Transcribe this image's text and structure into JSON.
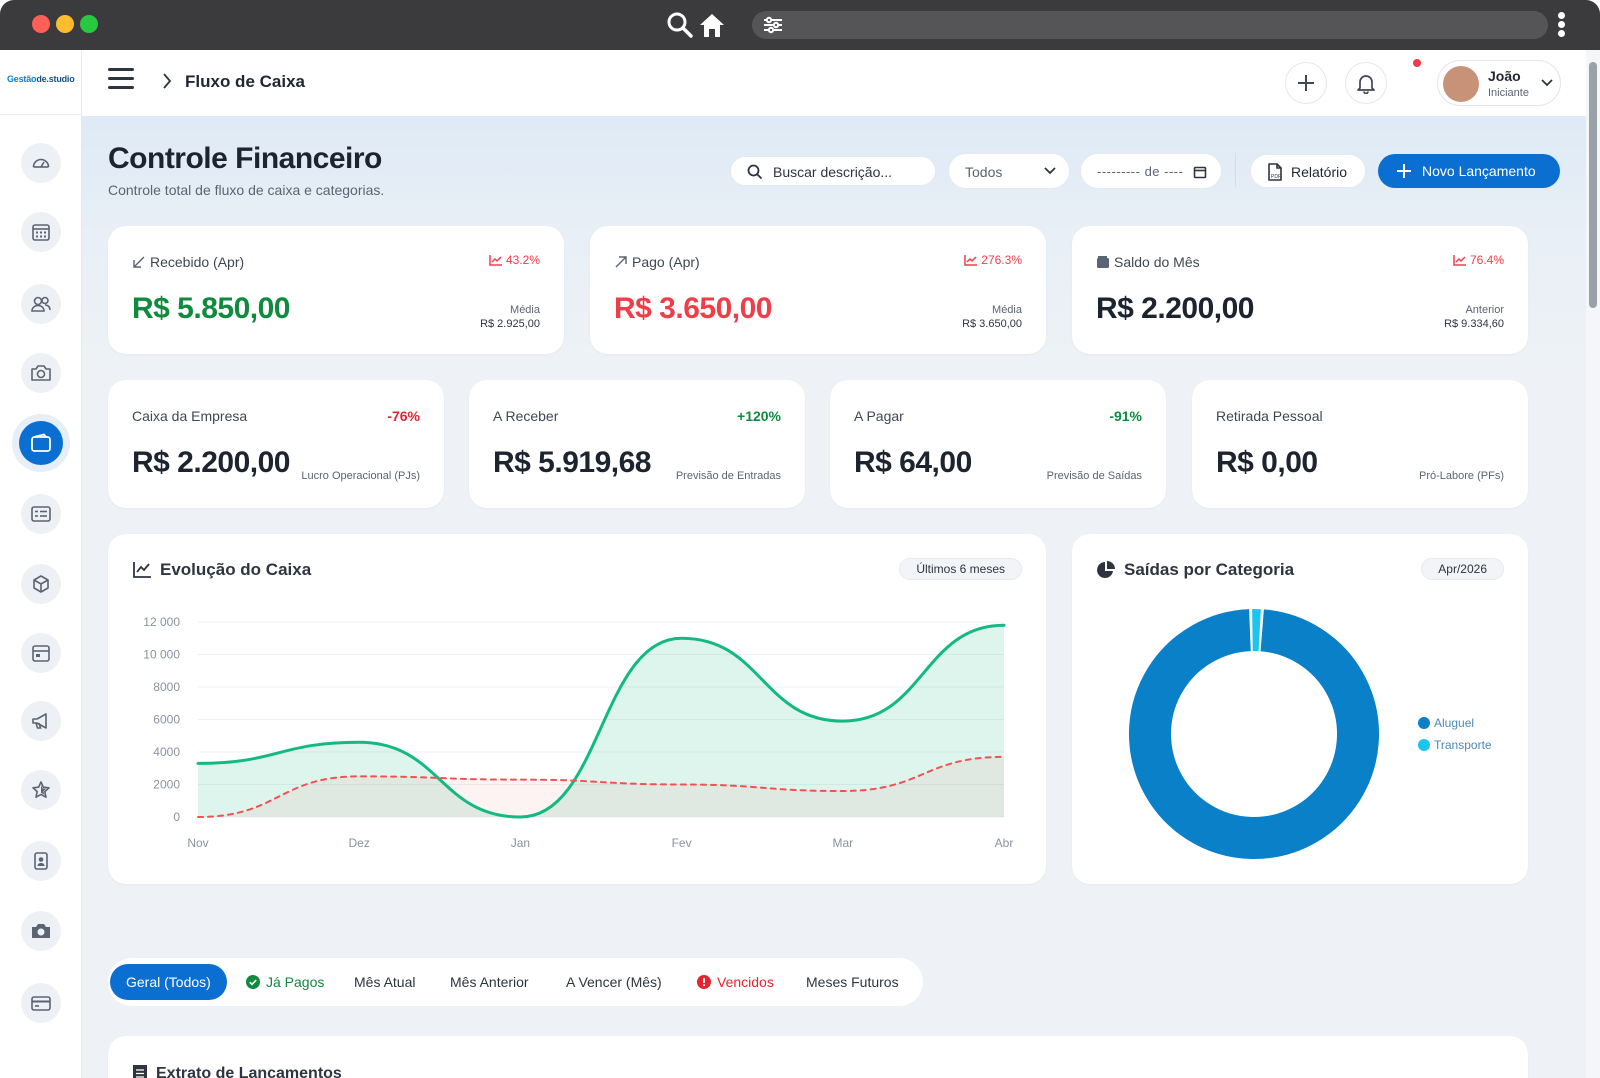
{
  "topbar": {
    "breadcrumb": "Fluxo de Caixa"
  },
  "logo": {
    "text_prefix": "Gestão",
    "text_suffix": "de.studio"
  },
  "user": {
    "name": "João",
    "role": "Iniciante"
  },
  "page": {
    "title": "Controle Financeiro",
    "subtitle": "Controle total de fluxo de caixa e categorias."
  },
  "toolbar": {
    "search_placeholder": "Buscar descrição...",
    "filter_selected": "Todos",
    "date_placeholder": "--------- de ----",
    "report_label": "Relatório",
    "new_label": "Novo Lançamento"
  },
  "kpis": [
    {
      "label": "Recebido (Apr)",
      "trend": "43.2%",
      "value": "R$ 5.850,00",
      "side_label": "Média",
      "side_value": "R$ 2.925,00",
      "color": "#0f8a3e"
    },
    {
      "label": "Pago (Apr)",
      "trend": "276.3%",
      "value": "R$ 3.650,00",
      "side_label": "Média",
      "side_value": "R$ 3.650,00",
      "color": "#ef3e4a"
    },
    {
      "label": "Saldo do Mês",
      "trend": "76.4%",
      "value": "R$ 2.200,00",
      "side_label": "Anterior",
      "side_value": "R$ 9.334,60",
      "color": "#1c2430"
    }
  ],
  "metrics": [
    {
      "label": "Caixa da Empresa",
      "pct": "-76%",
      "pct_color": "#e42433",
      "value": "R$ 2.200,00",
      "note": "Lucro Operacional (PJs)"
    },
    {
      "label": "A Receber",
      "pct": "+120%",
      "pct_color": "#0f8a3e",
      "value": "R$ 5.919,68",
      "note": "Previsão de Entradas"
    },
    {
      "label": "A Pagar",
      "pct": "-91%",
      "pct_color": "#0f8a3e",
      "value": "R$ 64,00",
      "note": "Previsão de Saídas"
    },
    {
      "label": "Retirada Pessoal",
      "pct": "",
      "pct_color": "#0f8a3e",
      "value": "R$ 0,00",
      "note": "Pró-Labore (PFs)"
    }
  ],
  "evolution": {
    "title": "Evolução do Caixa",
    "period": "Últimos 6 meses"
  },
  "category": {
    "title": "Saídas por Categoria",
    "period": "Apr/2026"
  },
  "tabs": [
    {
      "label": "Geral (Todos)"
    },
    {
      "label": "Já Pagos"
    },
    {
      "label": "Mês Atual"
    },
    {
      "label": "Mês Anterior"
    },
    {
      "label": "A Vencer (Mês)"
    },
    {
      "label": "Vencidos"
    },
    {
      "label": "Meses Futuros"
    }
  ],
  "statement": {
    "title": "Extrato de Lançamentos"
  },
  "colors": {
    "accent": "#0a6fd1",
    "positive": "#0f8a3e",
    "negative": "#ef3e4a",
    "income_line": "#14b982",
    "expense_line": "#f05252",
    "aluguel": "#0a80c8",
    "transporte": "#1cc4f0"
  },
  "chart_data": [
    {
      "type": "area",
      "x": [
        "Nov",
        "Dez",
        "Jan",
        "Fev",
        "Mar",
        "Abr"
      ],
      "series": [
        {
          "values": [
            3300,
            4600,
            0,
            11000,
            5900,
            11800
          ],
          "color": "#14b982"
        },
        {
          "values": [
            0,
            2500,
            2300,
            2000,
            1600,
            3700
          ],
          "color": "#f05252",
          "dashed": true
        }
      ],
      "yticks": [
        "0",
        "2000",
        "4000",
        "6000",
        "8000",
        "10 000",
        "12 000"
      ],
      "ylim": [
        0,
        12000
      ]
    },
    {
      "type": "pie",
      "donut": true,
      "labels": [
        "Aluguel",
        "Transporte"
      ],
      "values": [
        98.5,
        1.5
      ],
      "colors": [
        "#0a80c8",
        "#1cc4f0"
      ],
      "legend": "right"
    }
  ]
}
